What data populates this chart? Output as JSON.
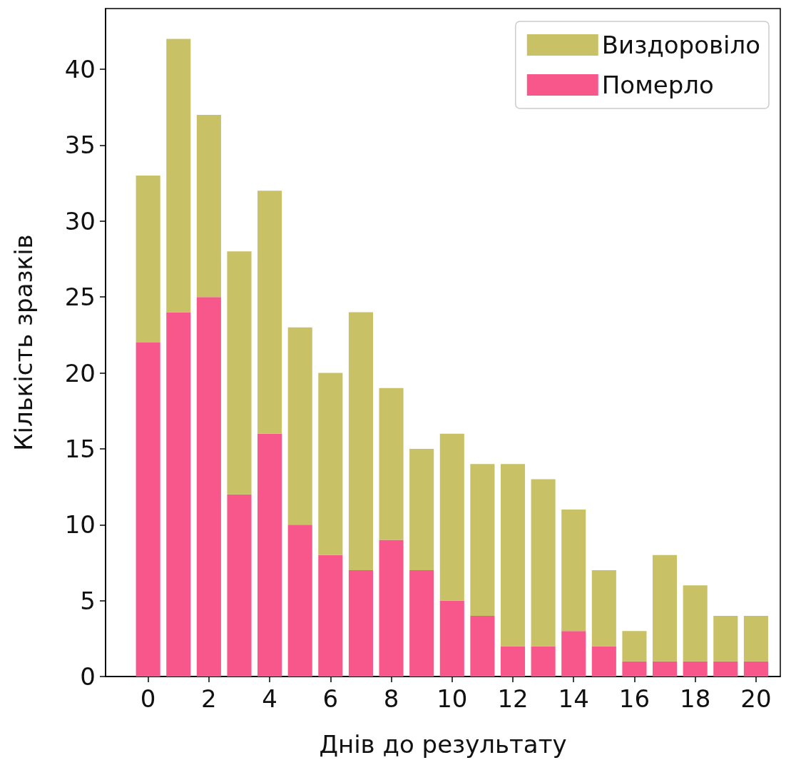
{
  "chart_data": {
    "type": "bar",
    "stacked": true,
    "xlabel": "Днів до результату",
    "ylabel": "Кількість зразків",
    "x": [
      0,
      1,
      2,
      3,
      4,
      5,
      6,
      7,
      8,
      9,
      10,
      11,
      12,
      13,
      14,
      15,
      16,
      17,
      18,
      19,
      20
    ],
    "series": [
      {
        "name": "Померло",
        "color": "#f7578a",
        "values": [
          22,
          24,
          25,
          12,
          16,
          10,
          8,
          7,
          9,
          7,
          5,
          4,
          2,
          2,
          3,
          2,
          1,
          1,
          1,
          1,
          1
        ]
      },
      {
        "name": "Виздоровіло",
        "color": "#c8c165",
        "values": [
          11,
          18,
          12,
          16,
          16,
          13,
          12,
          17,
          10,
          8,
          11,
          10,
          12,
          11,
          8,
          5,
          2,
          7,
          5,
          3,
          3
        ]
      }
    ],
    "xlim": [
      -1.4,
      20.8
    ],
    "xticks": [
      0,
      2,
      4,
      6,
      8,
      10,
      12,
      14,
      16,
      18,
      20
    ],
    "ylim": [
      0,
      44
    ],
    "yticks": [
      0,
      5,
      10,
      15,
      20,
      25,
      30,
      35,
      40
    ],
    "grid": false,
    "legend": "top right"
  }
}
